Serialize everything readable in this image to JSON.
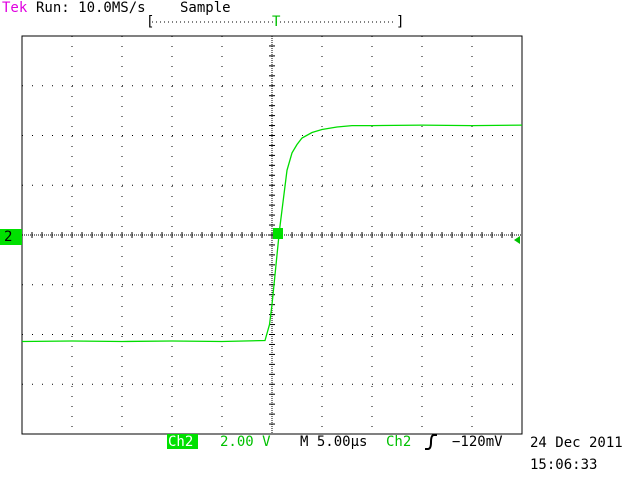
{
  "header": {
    "brand": "Tek",
    "run": "Run: 10.0MS/s",
    "mode": "Sample",
    "record_start": "[",
    "record_end": "]",
    "trigger_marker": "T"
  },
  "channel_marker": "2",
  "footer": {
    "channel": "Ch2",
    "volts_per_div": "2.00 V",
    "timebase": "M 5.00µs",
    "trigger_channel": "Ch2",
    "trigger_level": "−120mV",
    "date": "24 Dec 2011",
    "time": "15:06:33"
  },
  "trace": {
    "xlim": [
      0,
      10
    ],
    "ylim": [
      -4,
      4
    ],
    "x": [
      0,
      1,
      2,
      3,
      4,
      4.86,
      4.95,
      5.0,
      5.05,
      5.1,
      5.15,
      5.2,
      5.3,
      5.4,
      5.5,
      5.6,
      5.8,
      6.0,
      6.3,
      6.6,
      7.0,
      8.0,
      9.0,
      10
    ],
    "y": [
      -2.14,
      -2.13,
      -2.14,
      -2.13,
      -2.14,
      -2.12,
      -1.8,
      -1.4,
      -0.9,
      -0.4,
      0.1,
      0.5,
      1.3,
      1.65,
      1.82,
      1.95,
      2.06,
      2.12,
      2.17,
      2.2,
      2.2,
      2.21,
      2.2,
      2.21
    ]
  }
}
